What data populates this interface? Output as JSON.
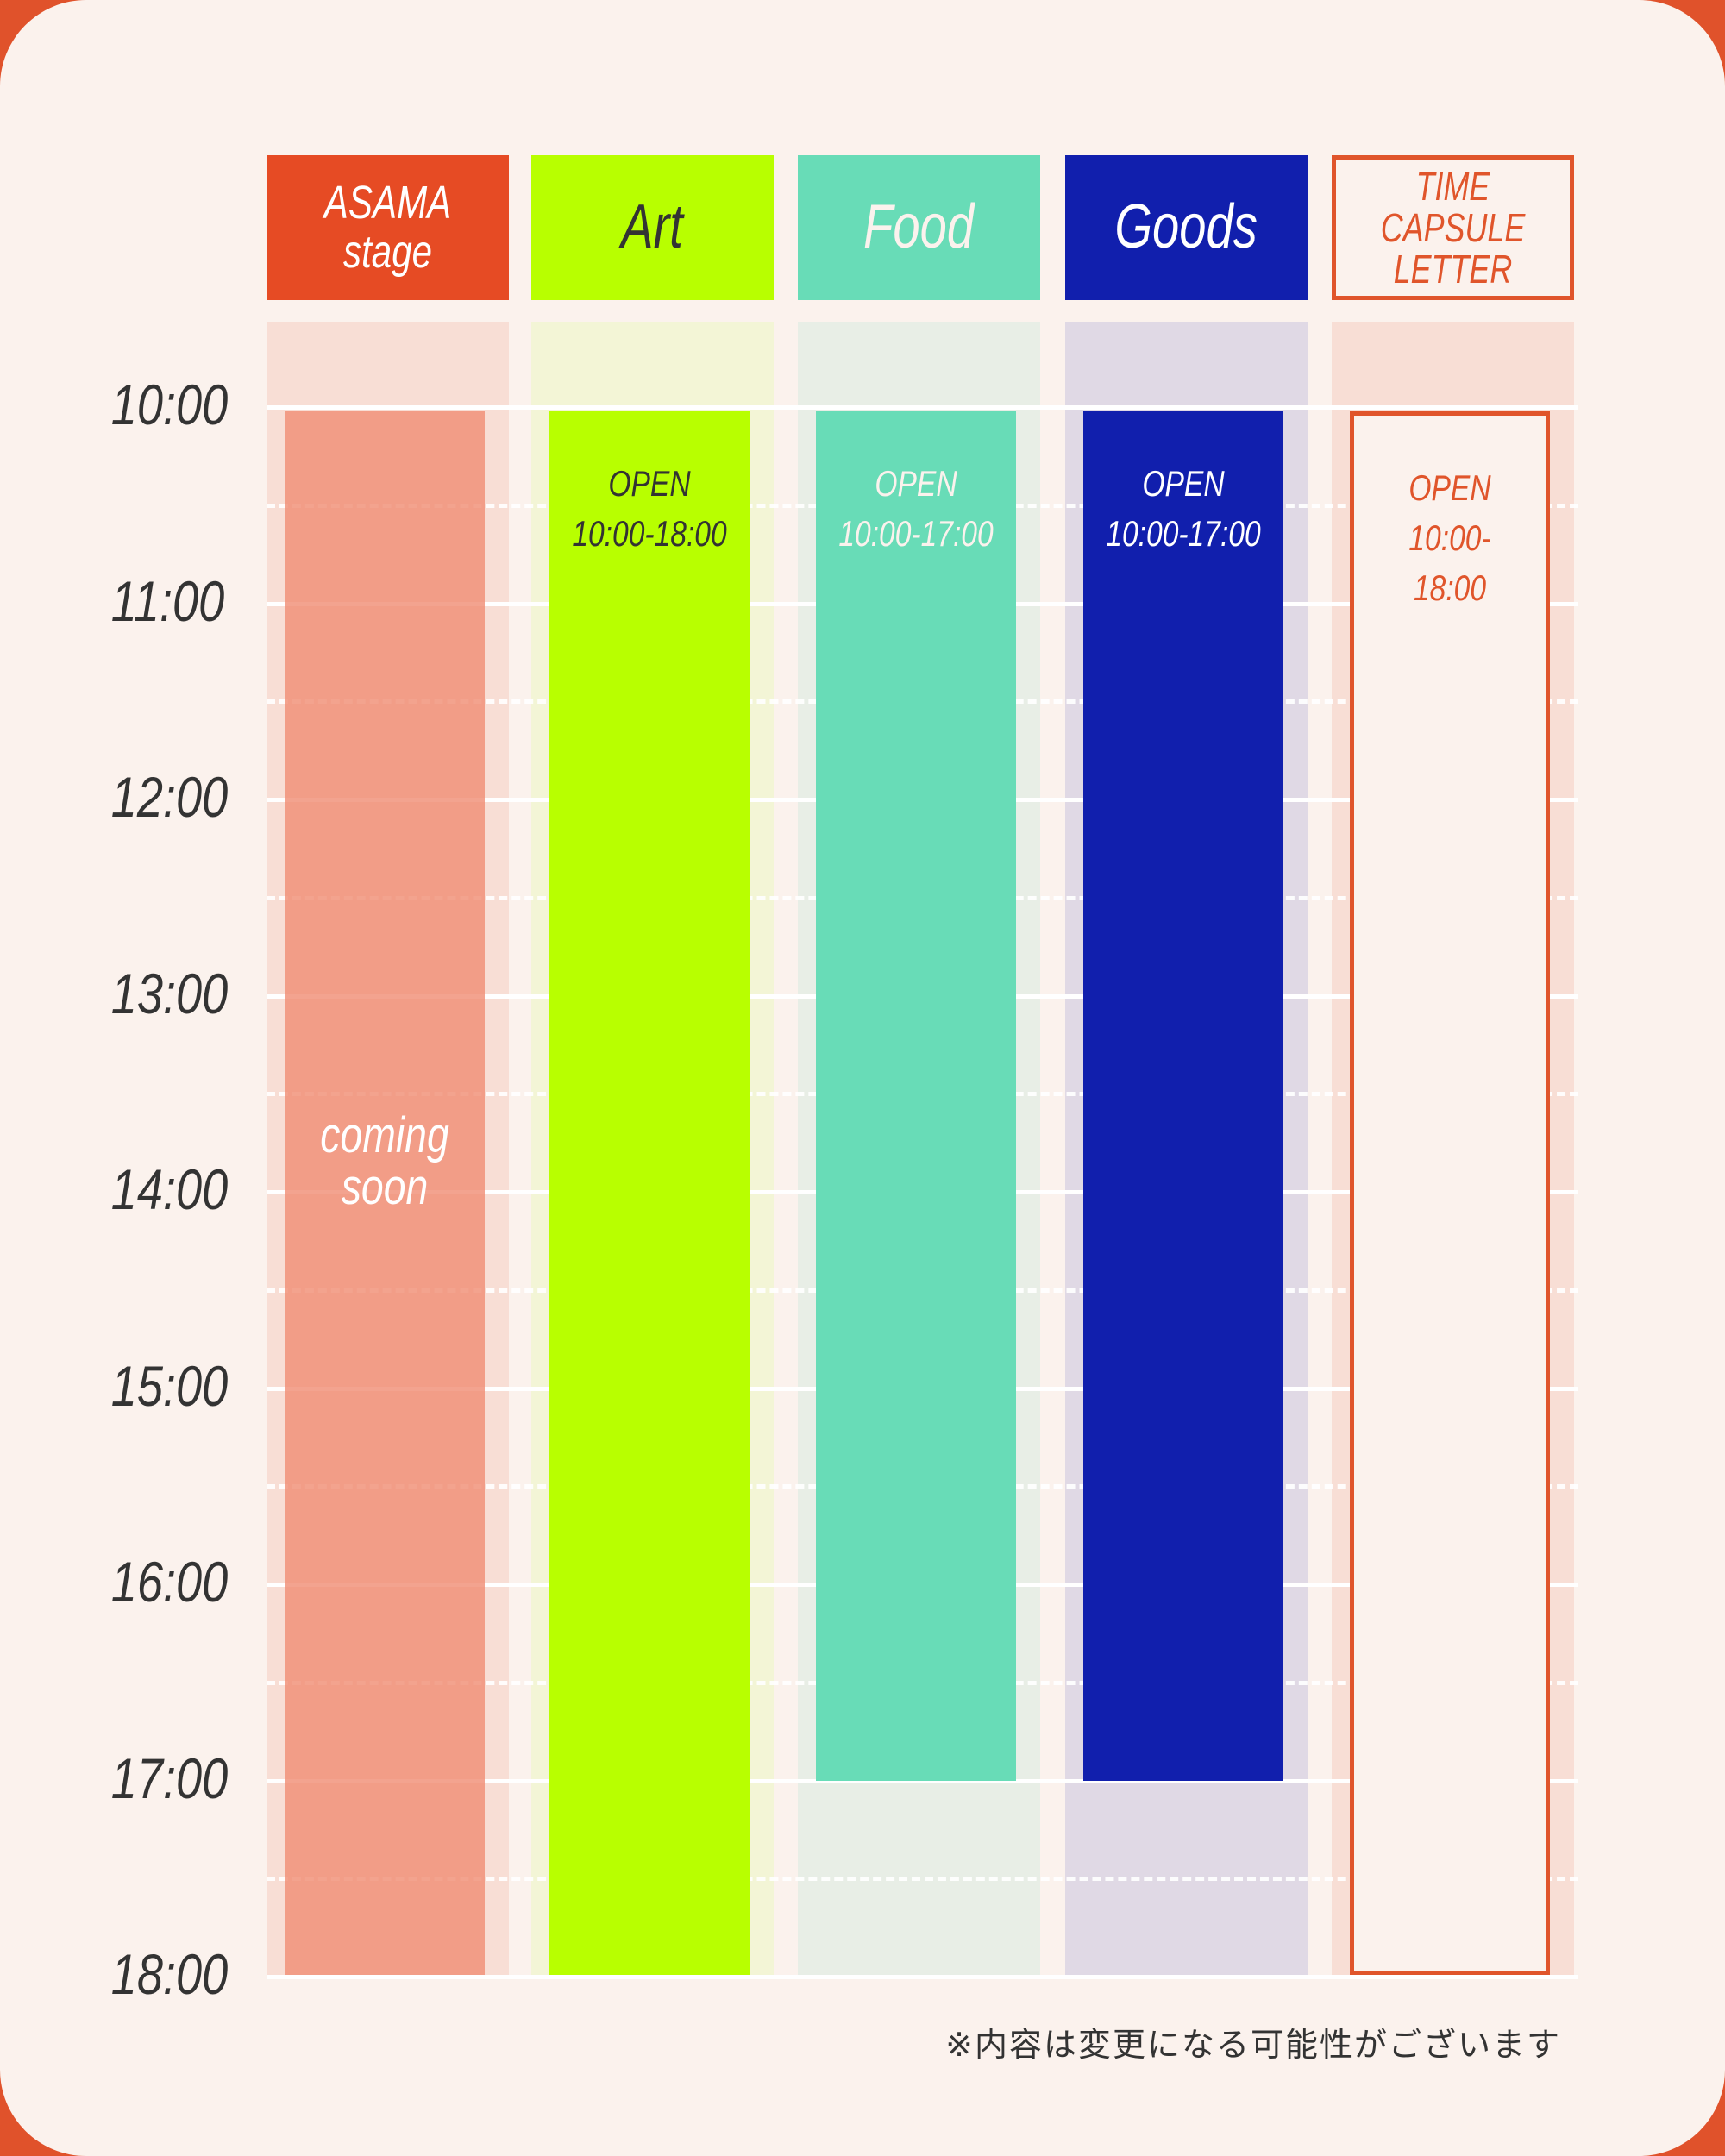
{
  "colors": {
    "page_bg": "#FBF2ED",
    "outer": "#E0522B"
  },
  "time_labels": [
    "10:00",
    "11:00",
    "12:00",
    "13:00",
    "14:00",
    "15:00",
    "16:00",
    "17:00",
    "18:00"
  ],
  "columns": [
    {
      "title": "ASAMA\nstage",
      "header_bg": "#E64B24",
      "header_fg": "#FFFFFF",
      "col_bg": "#F8DED5",
      "bar_color": "rgba(240,140,115,0.8)",
      "bar_fg": "#FFFFFF",
      "bar_border": "",
      "start": 10,
      "end": 18,
      "status": "",
      "hours": "",
      "center_text": "coming\nsoon"
    },
    {
      "title": "Art",
      "header_bg": "#B8FF00",
      "header_fg": "#333333",
      "col_bg": "#F3F5D6",
      "bar_color": "#B8FF00",
      "bar_fg": "#333333",
      "bar_border": "",
      "start": 10,
      "end": 18,
      "status": "OPEN",
      "hours": "10:00-18:00"
    },
    {
      "title": "Food",
      "header_bg": "#68DCB7",
      "header_fg": "#FBF2ED",
      "col_bg": "#E8EEE6",
      "bar_color": "#68DCB7",
      "bar_fg": "#FBF2ED",
      "bar_border": "",
      "start": 10,
      "end": 17,
      "status": "OPEN",
      "hours": "10:00-17:00"
    },
    {
      "title": "Goods",
      "header_bg": "#111FAD",
      "header_fg": "#FFFFFF",
      "col_bg": "#E0D9E5",
      "bar_color": "#111FAD",
      "bar_fg": "#FFFFFF",
      "bar_border": "",
      "start": 10,
      "end": 17,
      "status": "OPEN",
      "hours": "10:00-17:00"
    },
    {
      "title": "TIME CAPSULE\nLETTER",
      "header_bg": "#FBF2ED",
      "header_fg": "#E0552B",
      "header_border": "#E0552B",
      "col_bg": "#F8DED5",
      "bar_color": "#FBF2ED",
      "bar_fg": "#E0552B",
      "bar_border": "#E0552B",
      "start": 10,
      "end": 18,
      "status": "OPEN",
      "hours": "10:00-18:00"
    }
  ],
  "note": "※内容は変更になる可能性がございます"
}
